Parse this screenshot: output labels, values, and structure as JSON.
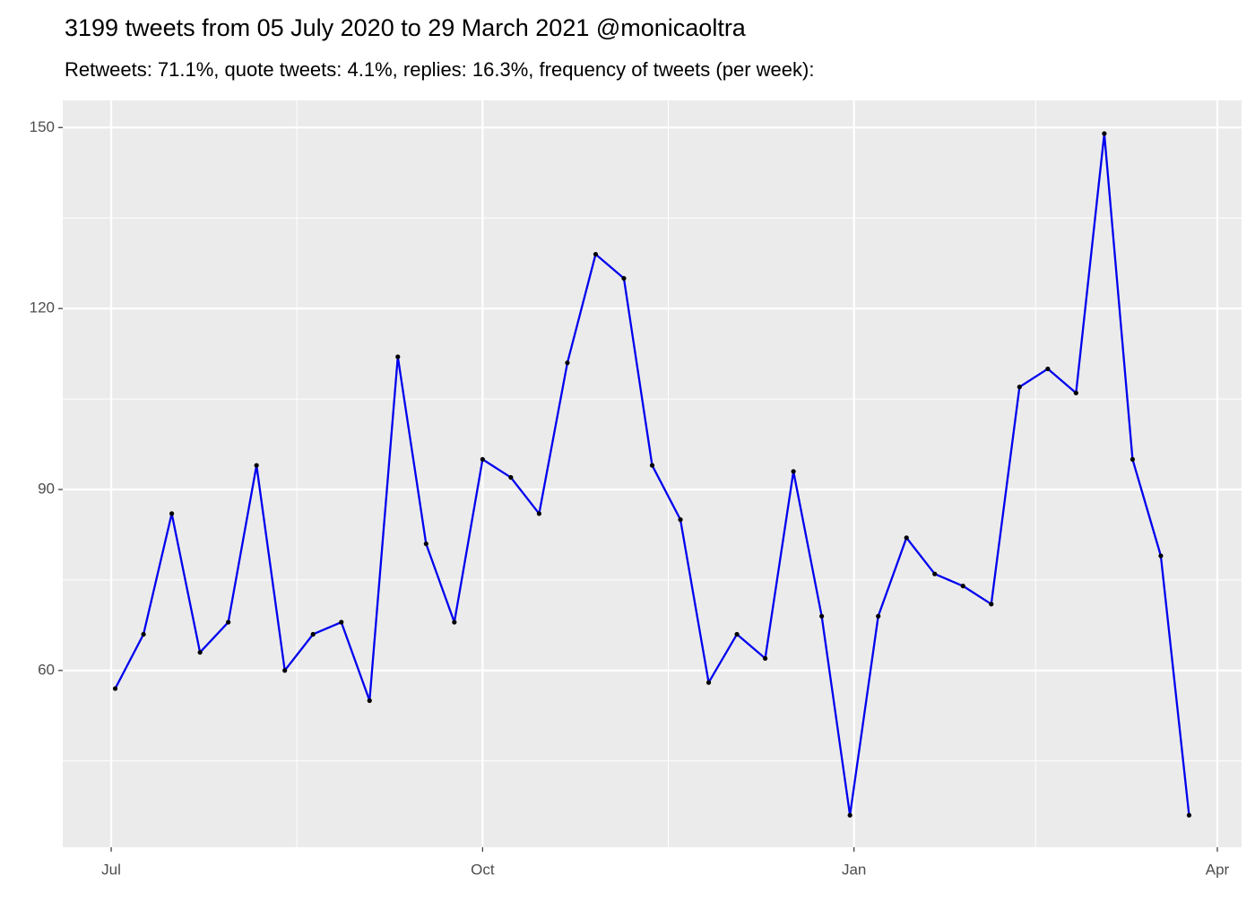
{
  "chart_data": {
    "type": "line",
    "title": "3199 tweets from 05 July 2020 to 29 March 2021 @monicaoltra",
    "subtitle": "Retweets: 71.1%, quote tweets: 4.1%, replies: 16.3%, frequency of tweets (per week):",
    "x": [
      "2020-07-02",
      "2020-07-09",
      "2020-07-16",
      "2020-07-23",
      "2020-07-30",
      "2020-08-06",
      "2020-08-13",
      "2020-08-20",
      "2020-08-27",
      "2020-09-03",
      "2020-09-10",
      "2020-09-17",
      "2020-09-24",
      "2020-10-01",
      "2020-10-08",
      "2020-10-15",
      "2020-10-22",
      "2020-10-29",
      "2020-11-05",
      "2020-11-12",
      "2020-11-19",
      "2020-11-26",
      "2020-12-03",
      "2020-12-10",
      "2020-12-17",
      "2020-12-24",
      "2020-12-31",
      "2021-01-07",
      "2021-01-14",
      "2021-01-21",
      "2021-01-28",
      "2021-02-04",
      "2021-02-11",
      "2021-02-18",
      "2021-02-25",
      "2021-03-04",
      "2021-03-11",
      "2021-03-18",
      "2021-03-25"
    ],
    "series": [
      {
        "color": "#0000ee",
        "point_color": "#000000",
        "values": [
          57,
          66,
          86,
          63,
          68,
          94,
          60,
          66,
          68,
          55,
          112,
          81,
          68,
          95,
          92,
          86,
          111,
          129,
          125,
          94,
          85,
          58,
          66,
          62,
          93,
          69,
          36,
          69,
          82,
          76,
          74,
          71,
          107,
          110,
          106,
          149,
          95,
          79,
          36
        ]
      }
    ],
    "xlim": [
      "2020-06-19",
      "2021-04-07"
    ],
    "xticks": [
      {
        "value": "2020-07-01",
        "label": "Jul"
      },
      {
        "value": "2020-10-01",
        "label": "Oct"
      },
      {
        "value": "2021-01-01",
        "label": "Jan"
      },
      {
        "value": "2021-04-01",
        "label": "Apr"
      }
    ],
    "ylim": [
      30.7,
      154.5
    ],
    "yticks": [
      60,
      90,
      120,
      150
    ],
    "grid": true
  }
}
